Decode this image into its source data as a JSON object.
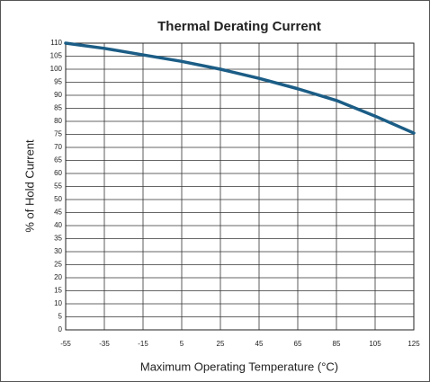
{
  "chart_data": {
    "type": "line",
    "title": "Thermal Derating Current",
    "xlabel": "Maximum Operating Temperature (°C)",
    "ylabel": "% of Hold Current",
    "x": [
      -55,
      -35,
      -15,
      5,
      25,
      45,
      65,
      85,
      105,
      125
    ],
    "series": [
      {
        "name": "Hold Current",
        "color": "#1b5d86",
        "values": [
          110,
          108,
          105.5,
          103,
          100,
          96.5,
          92.5,
          88,
          82,
          75.5
        ]
      }
    ],
    "xlim": [
      -55,
      125
    ],
    "xticks": [
      -55,
      -35,
      -15,
      5,
      25,
      45,
      65,
      85,
      105,
      125
    ],
    "ylim": [
      0,
      110
    ],
    "yticks": [
      0,
      5,
      10,
      15,
      20,
      25,
      30,
      35,
      40,
      45,
      50,
      55,
      60,
      65,
      70,
      75,
      80,
      85,
      90,
      95,
      100,
      105,
      110
    ],
    "grid": true
  }
}
